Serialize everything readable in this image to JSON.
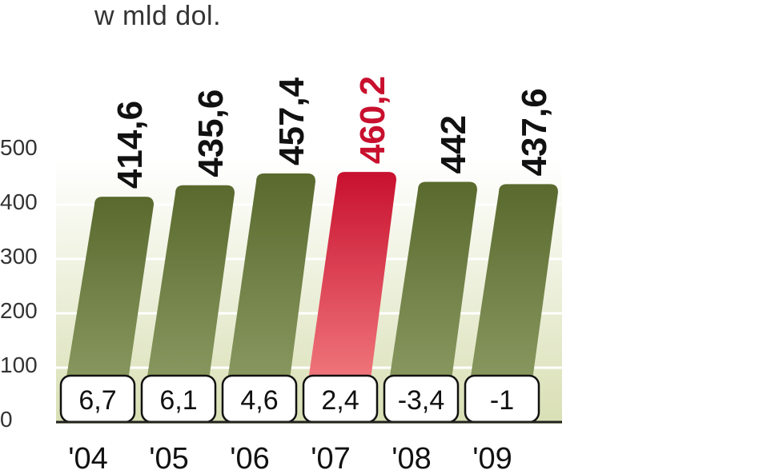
{
  "chart_data": {
    "type": "bar",
    "subtitle": "w mld dol.",
    "categories": [
      "'04",
      "'05",
      "'06",
      "'07",
      "'08",
      "'09"
    ],
    "values": [
      414.6,
      435.6,
      457.4,
      460.2,
      442,
      437.6
    ],
    "value_labels": [
      "414,6",
      "435,6",
      "457,4",
      "460,2",
      "442",
      "437,6"
    ],
    "change_labels": [
      "6,7",
      "6,1",
      "4,6",
      "2,4",
      "-3,4",
      "-1"
    ],
    "highlight_index": 3,
    "yticks": [
      0,
      100,
      200,
      300,
      400,
      500
    ],
    "ytick_labels": [
      "0",
      "100",
      "200",
      "300",
      "400",
      "500"
    ],
    "ylim": [
      0,
      500
    ],
    "grid": true,
    "colors": {
      "bar": "#5a6a2e",
      "bar_light": "#8a9a62",
      "highlight": "#c8102e",
      "highlight_light": "#f27c80",
      "highlight_label": "#c8102e",
      "label": "#111111",
      "axis_text": "#333333"
    }
  }
}
